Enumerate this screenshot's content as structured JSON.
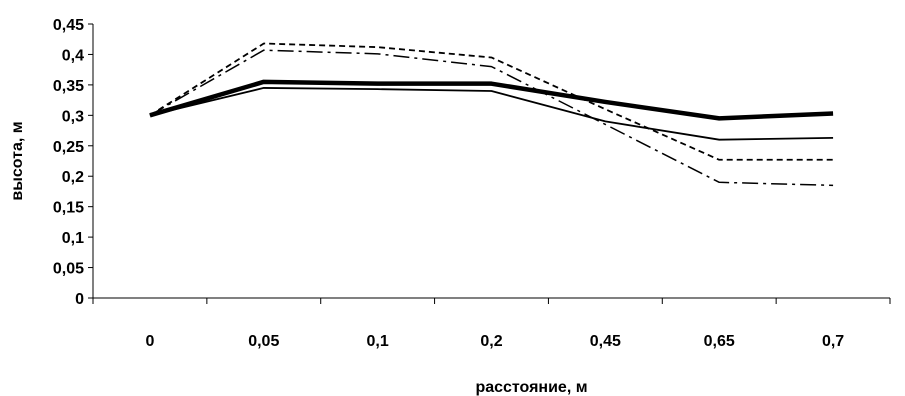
{
  "chart_data": {
    "type": "line",
    "title": "",
    "xlabel": "расстояние, м",
    "ylabel": "высота, м",
    "categories": [
      "0",
      "0,05",
      "0,1",
      "0,2",
      "0,45",
      "0,65",
      "0,7"
    ],
    "y_ticks": [
      "0",
      "0,05",
      "0,1",
      "0,15",
      "0,2",
      "0,25",
      "0,3",
      "0,35",
      "0,4",
      "0,45"
    ],
    "ylim": [
      0,
      0.45
    ],
    "grid": false,
    "legend": "none",
    "series": [
      {
        "style": "thick-solid",
        "color": "#000000",
        "values": [
          0.3,
          0.355,
          0.352,
          0.352,
          0.322,
          0.295,
          0.303
        ]
      },
      {
        "style": "thin-solid",
        "color": "#000000",
        "values": [
          0.3,
          0.345,
          0.343,
          0.34,
          0.29,
          0.26,
          0.263
        ]
      },
      {
        "style": "dashed",
        "color": "#000000",
        "values": [
          0.3,
          0.418,
          0.412,
          0.395,
          0.31,
          0.227,
          0.227
        ]
      },
      {
        "style": "dash-dot",
        "color": "#000000",
        "values": [
          0.3,
          0.407,
          0.401,
          0.38,
          0.285,
          0.19,
          0.185
        ]
      }
    ]
  }
}
